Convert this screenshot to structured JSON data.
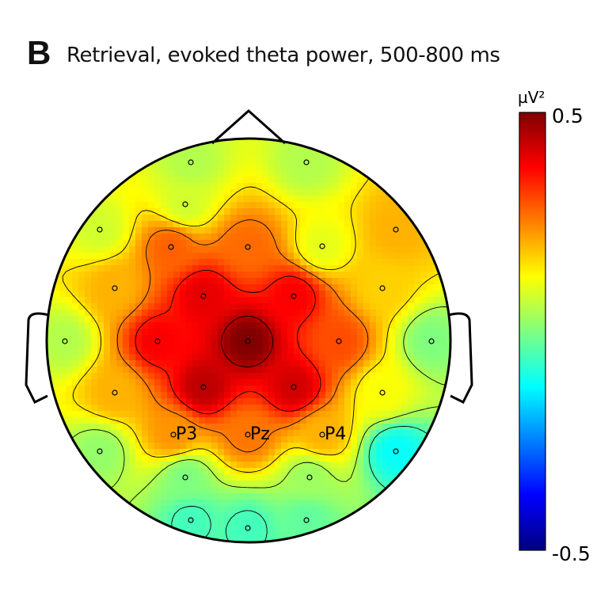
{
  "panel_label": "B",
  "title": "Retrieval, evoked theta power, 500-800 ms",
  "colors": {
    "outline": "#000000",
    "contour": "#000000",
    "colormap": [
      "#00007f",
      "#0000ff",
      "#007fff",
      "#00ffff",
      "#7fff7f",
      "#ffff00",
      "#ff7f00",
      "#ff0000",
      "#7f0000"
    ]
  },
  "chart_data": {
    "type": "heatmap",
    "subtype": "eeg-scalp-topography",
    "title": "Retrieval, evoked theta power, 500-800 ms",
    "colorbar": {
      "unit": "µV²",
      "max": 0.5,
      "min": -0.5,
      "max_label": "0.5",
      "min_label": "-0.5"
    },
    "electrodes": [
      {
        "label": "",
        "value": 0.05
      },
      {
        "label": "",
        "value": 0.05
      },
      {
        "label": "",
        "value": 0.08
      },
      {
        "label": "",
        "value": 0.08
      },
      {
        "label": "",
        "value": 0.2
      },
      {
        "label": "",
        "value": 0.28
      },
      {
        "label": "",
        "value": 0.27
      },
      {
        "label": "",
        "value": 0.1
      },
      {
        "label": "",
        "value": 0.2
      },
      {
        "label": "",
        "value": 0.4
      },
      {
        "label": "",
        "value": 0.38
      },
      {
        "label": "",
        "value": 0.17
      },
      {
        "label": "",
        "value": 0.05
      },
      {
        "label": "",
        "value": 0.38
      },
      {
        "label": "",
        "value": 0.5
      },
      {
        "label": "",
        "value": 0.3
      },
      {
        "label": "",
        "value": 0.0
      },
      {
        "label": "",
        "value": 0.2
      },
      {
        "label": "",
        "value": 0.44
      },
      {
        "label": "",
        "value": 0.42
      },
      {
        "label": "",
        "value": 0.12
      },
      {
        "label": "P3",
        "value": 0.23
      },
      {
        "label": "Pz",
        "value": 0.26
      },
      {
        "label": "P4",
        "value": 0.2
      },
      {
        "label": "",
        "value": 0.02
      },
      {
        "label": "",
        "value": 0.0
      },
      {
        "label": "",
        "value": 0.03
      },
      {
        "label": "",
        "value": -0.12
      },
      {
        "label": "",
        "value": -0.06
      },
      {
        "label": "",
        "value": -0.03
      },
      {
        "label": "",
        "value": -0.06
      }
    ]
  }
}
